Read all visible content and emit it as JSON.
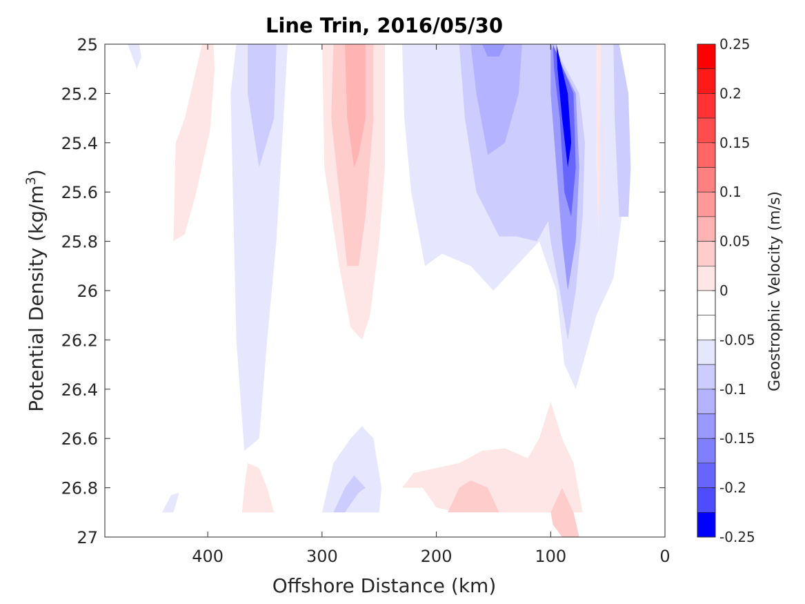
{
  "chart_data": {
    "type": "contour",
    "title": "Line Trin, 2016/05/30",
    "xlabel": "Offshore Distance (km)",
    "ylabel_main": "Potential Density (kg/m",
    "ylabel_sup": "3",
    "ylabel_close": ")",
    "colorbar_label": "Geostrophic Velocity (m/s)",
    "xlim": [
      490,
      0
    ],
    "ylim": [
      25,
      27
    ],
    "x_ticks": [
      400,
      300,
      200,
      100,
      0
    ],
    "x_tick_labels": [
      "400",
      "300",
      "200",
      "100",
      "0"
    ],
    "y_ticks": [
      25,
      25.2,
      25.4,
      25.6,
      25.8,
      26,
      26.2,
      26.4,
      26.6,
      26.8,
      27
    ],
    "y_tick_labels": [
      "25",
      "25.2",
      "25.4",
      "25.6",
      "25.8",
      "26",
      "26.2",
      "26.4",
      "26.6",
      "26.8",
      "27"
    ],
    "colorbar_ticks": [
      0.25,
      0.2,
      0.15,
      0.1,
      0.05,
      0,
      -0.05,
      -0.1,
      -0.15,
      -0.2,
      -0.25
    ],
    "colorbar_tick_labels": [
      "0.25",
      "0.2",
      "0.15",
      "0.1",
      "0.05",
      "0",
      "-0.05",
      "-0.1",
      "-0.15",
      "-0.2",
      "-0.25"
    ],
    "colorbar_levels": [
      {
        "from": 0.225,
        "to": 0.25,
        "color": "#ff0000"
      },
      {
        "from": 0.2,
        "to": 0.225,
        "color": "#ff1a1a"
      },
      {
        "from": 0.175,
        "to": 0.2,
        "color": "#ff3333"
      },
      {
        "from": 0.15,
        "to": 0.175,
        "color": "#ff4d4d"
      },
      {
        "from": 0.125,
        "to": 0.15,
        "color": "#ff6666"
      },
      {
        "from": 0.1,
        "to": 0.125,
        "color": "#ff8080"
      },
      {
        "from": 0.075,
        "to": 0.1,
        "color": "#ff9999"
      },
      {
        "from": 0.05,
        "to": 0.075,
        "color": "#ffb3b3"
      },
      {
        "from": 0.025,
        "to": 0.05,
        "color": "#ffcccc"
      },
      {
        "from": 0.0,
        "to": 0.025,
        "color": "#ffe6e6"
      },
      {
        "from": -0.025,
        "to": 0.0,
        "color": "#ffffff"
      },
      {
        "from": -0.05,
        "to": -0.025,
        "color": "#ffffff"
      },
      {
        "from": -0.075,
        "to": -0.05,
        "color": "#e6e6ff"
      },
      {
        "from": -0.1,
        "to": -0.075,
        "color": "#ccccff"
      },
      {
        "from": -0.125,
        "to": -0.1,
        "color": "#b3b3ff"
      },
      {
        "from": -0.15,
        "to": -0.125,
        "color": "#9999ff"
      },
      {
        "from": -0.175,
        "to": -0.15,
        "color": "#8080ff"
      },
      {
        "from": -0.2,
        "to": -0.175,
        "color": "#6666ff"
      },
      {
        "from": -0.225,
        "to": -0.2,
        "color": "#4d4dff"
      },
      {
        "from": -0.25,
        "to": -0.225,
        "color": "#0000ff"
      }
    ],
    "regions": [
      {
        "name": "pos-400",
        "color": "#ffe6e6",
        "pts": [
          [
            395,
            25
          ],
          [
            405,
            25.0
          ],
          [
            415,
            25.2
          ],
          [
            420,
            25.3
          ],
          [
            428,
            25.4
          ],
          [
            430,
            25.8
          ],
          [
            420,
            25.77
          ],
          [
            410,
            25.6
          ],
          [
            398,
            25.35
          ],
          [
            394,
            25.1
          ]
        ]
      },
      {
        "name": "neg-460",
        "color": "#e6e6ff",
        "pts": [
          [
            470,
            25
          ],
          [
            460,
            25
          ],
          [
            458,
            25.05
          ],
          [
            462,
            25.1
          ]
        ]
      },
      {
        "name": "neg-360",
        "color": "#e6e6ff",
        "pts": [
          [
            375,
            25
          ],
          [
            330,
            25
          ],
          [
            335,
            25.4
          ],
          [
            340,
            25.8
          ],
          [
            348,
            26.2
          ],
          [
            355,
            26.6
          ],
          [
            368,
            26.65
          ],
          [
            375,
            26.2
          ],
          [
            378,
            25.6
          ],
          [
            380,
            25.2
          ]
        ]
      },
      {
        "name": "neg-360-b",
        "color": "#ccccff",
        "pts": [
          [
            365,
            25
          ],
          [
            340,
            25
          ],
          [
            342,
            25.3
          ],
          [
            355,
            25.5
          ],
          [
            365,
            25.2
          ]
        ]
      },
      {
        "name": "pos-280",
        "color": "#ffe6e6",
        "pts": [
          [
            300,
            25
          ],
          [
            245,
            25
          ],
          [
            245,
            25.5
          ],
          [
            250,
            25.8
          ],
          [
            258,
            26.1
          ],
          [
            265,
            26.2
          ],
          [
            275,
            26.15
          ],
          [
            285,
            25.9
          ],
          [
            298,
            25.5
          ]
        ]
      },
      {
        "name": "pos-280-b",
        "color": "#ffcccc",
        "pts": [
          [
            290,
            25
          ],
          [
            255,
            25
          ],
          [
            255,
            25.3
          ],
          [
            262,
            25.7
          ],
          [
            268,
            25.9
          ],
          [
            278,
            25.9
          ],
          [
            285,
            25.6
          ],
          [
            292,
            25.3
          ]
        ]
      },
      {
        "name": "pos-280-c",
        "color": "#ffb3b3",
        "pts": [
          [
            280,
            25
          ],
          [
            262,
            25
          ],
          [
            262,
            25.3
          ],
          [
            268,
            25.45
          ],
          [
            272,
            25.5
          ],
          [
            278,
            25.3
          ]
        ]
      },
      {
        "name": "neg-150",
        "color": "#e6e6ff",
        "pts": [
          [
            230,
            25
          ],
          [
            45,
            25
          ],
          [
            38,
            25.2
          ],
          [
            35,
            25.6
          ],
          [
            45,
            25.95
          ],
          [
            60,
            26.1
          ],
          [
            72,
            26.3
          ],
          [
            78,
            26.4
          ],
          [
            88,
            26.3
          ],
          [
            95,
            26.0
          ],
          [
            110,
            25.8
          ],
          [
            130,
            25.9
          ],
          [
            150,
            26.0
          ],
          [
            170,
            25.9
          ],
          [
            195,
            25.85
          ],
          [
            210,
            25.9
          ],
          [
            222,
            25.6
          ],
          [
            228,
            25.3
          ]
        ]
      },
      {
        "name": "neg-150-b",
        "color": "#ccccff",
        "pts": [
          [
            180,
            25
          ],
          [
            95,
            25
          ],
          [
            92,
            25.5
          ],
          [
            100,
            25.7
          ],
          [
            112,
            25.8
          ],
          [
            130,
            25.78
          ],
          [
            145,
            25.78
          ],
          [
            165,
            25.6
          ],
          [
            175,
            25.3
          ]
        ]
      },
      {
        "name": "neg-150-c",
        "color": "#b3b3ff",
        "pts": [
          [
            170,
            25
          ],
          [
            125,
            25
          ],
          [
            128,
            25.2
          ],
          [
            140,
            25.4
          ],
          [
            155,
            25.45
          ],
          [
            165,
            25.2
          ]
        ]
      },
      {
        "name": "neg-150-d",
        "color": "#9999ff",
        "pts": [
          [
            160,
            25
          ],
          [
            140,
            25
          ],
          [
            145,
            25.05
          ],
          [
            155,
            25.05
          ]
        ]
      },
      {
        "name": "neg-80",
        "color": "#ccccff",
        "pts": [
          [
            98,
            25
          ],
          [
            75,
            25.2
          ],
          [
            70,
            25.4
          ],
          [
            72,
            25.7
          ],
          [
            78,
            26.0
          ],
          [
            85,
            26.2
          ],
          [
            92,
            26.0
          ],
          [
            100,
            25.8
          ],
          [
            105,
            25.6
          ],
          [
            102,
            25.3
          ]
        ]
      },
      {
        "name": "neg-80-b",
        "color": "#9999ff",
        "pts": [
          [
            100,
            25
          ],
          [
            78,
            25.2
          ],
          [
            75,
            25.5
          ],
          [
            78,
            25.8
          ],
          [
            85,
            26.0
          ],
          [
            90,
            25.8
          ],
          [
            95,
            25.5
          ],
          [
            100,
            25.2
          ]
        ]
      },
      {
        "name": "neg-80-c",
        "color": "#6666ff",
        "pts": [
          [
            98,
            25
          ],
          [
            80,
            25.2
          ],
          [
            78,
            25.5
          ],
          [
            82,
            25.7
          ],
          [
            88,
            25.6
          ],
          [
            92,
            25.3
          ],
          [
            97,
            25.1
          ]
        ]
      },
      {
        "name": "neg-80-d",
        "color": "#0000ff",
        "pts": [
          [
            95,
            25
          ],
          [
            85,
            25.2
          ],
          [
            82,
            25.4
          ],
          [
            85,
            25.5
          ],
          [
            90,
            25.3
          ],
          [
            94,
            25.1
          ]
        ]
      },
      {
        "name": "neg-40",
        "color": "#ccccff",
        "pts": [
          [
            45,
            25
          ],
          [
            40,
            25
          ],
          [
            32,
            25.2
          ],
          [
            30,
            25.5
          ],
          [
            32,
            25.7
          ],
          [
            40,
            25.7
          ],
          [
            44,
            25.3
          ]
        ]
      },
      {
        "name": "pos-60",
        "color": "#ffe6e6",
        "pts": [
          [
            60,
            25
          ],
          [
            56,
            25
          ],
          [
            57,
            25.5
          ],
          [
            58,
            25.8
          ],
          [
            60,
            25.5
          ]
        ]
      },
      {
        "name": "neg-280-deep",
        "color": "#e6e6ff",
        "pts": [
          [
            300,
            26.9
          ],
          [
            290,
            26.7
          ],
          [
            275,
            26.6
          ],
          [
            265,
            26.55
          ],
          [
            255,
            26.6
          ],
          [
            248,
            26.8
          ],
          [
            250,
            26.9
          ],
          [
            300,
            26.9
          ]
        ]
      },
      {
        "name": "neg-280-deep-b",
        "color": "#ccccff",
        "pts": [
          [
            290,
            26.9
          ],
          [
            280,
            26.8
          ],
          [
            272,
            26.75
          ],
          [
            262,
            26.8
          ],
          [
            268,
            26.82
          ],
          [
            280,
            26.9
          ]
        ]
      },
      {
        "name": "pos-350-deep",
        "color": "#ffe6e6",
        "pts": [
          [
            370,
            26.9
          ],
          [
            368,
            26.8
          ],
          [
            365,
            26.7
          ],
          [
            355,
            26.72
          ],
          [
            348,
            26.8
          ],
          [
            342,
            26.9
          ]
        ]
      },
      {
        "name": "neg-440-deep",
        "color": "#e6e6ff",
        "pts": [
          [
            440,
            26.9
          ],
          [
            432,
            26.83
          ],
          [
            425,
            26.82
          ],
          [
            430,
            26.9
          ]
        ]
      },
      {
        "name": "pos-160-deep",
        "color": "#ffe6e6",
        "pts": [
          [
            230,
            26.8
          ],
          [
            220,
            26.74
          ],
          [
            200,
            26.72
          ],
          [
            180,
            26.7
          ],
          [
            160,
            26.65
          ],
          [
            140,
            26.64
          ],
          [
            120,
            26.68
          ],
          [
            110,
            26.6
          ],
          [
            100,
            26.45
          ],
          [
            90,
            26.6
          ],
          [
            80,
            26.7
          ],
          [
            72,
            26.9
          ],
          [
            120,
            26.9
          ],
          [
            180,
            26.9
          ],
          [
            200,
            26.88
          ],
          [
            212,
            26.8
          ]
        ]
      },
      {
        "name": "pos-160-deep-b",
        "color": "#ffcccc",
        "pts": [
          [
            190,
            26.9
          ],
          [
            180,
            26.8
          ],
          [
            170,
            26.77
          ],
          [
            155,
            26.8
          ],
          [
            145,
            26.9
          ]
        ]
      },
      {
        "name": "pos-85-deep",
        "color": "#ffcccc",
        "pts": [
          [
            100,
            26.9
          ],
          [
            90,
            26.8
          ],
          [
            85,
            26.85
          ],
          [
            80,
            26.9
          ],
          [
            75,
            27
          ],
          [
            90,
            27
          ],
          [
            98,
            26.95
          ]
        ]
      }
    ]
  }
}
